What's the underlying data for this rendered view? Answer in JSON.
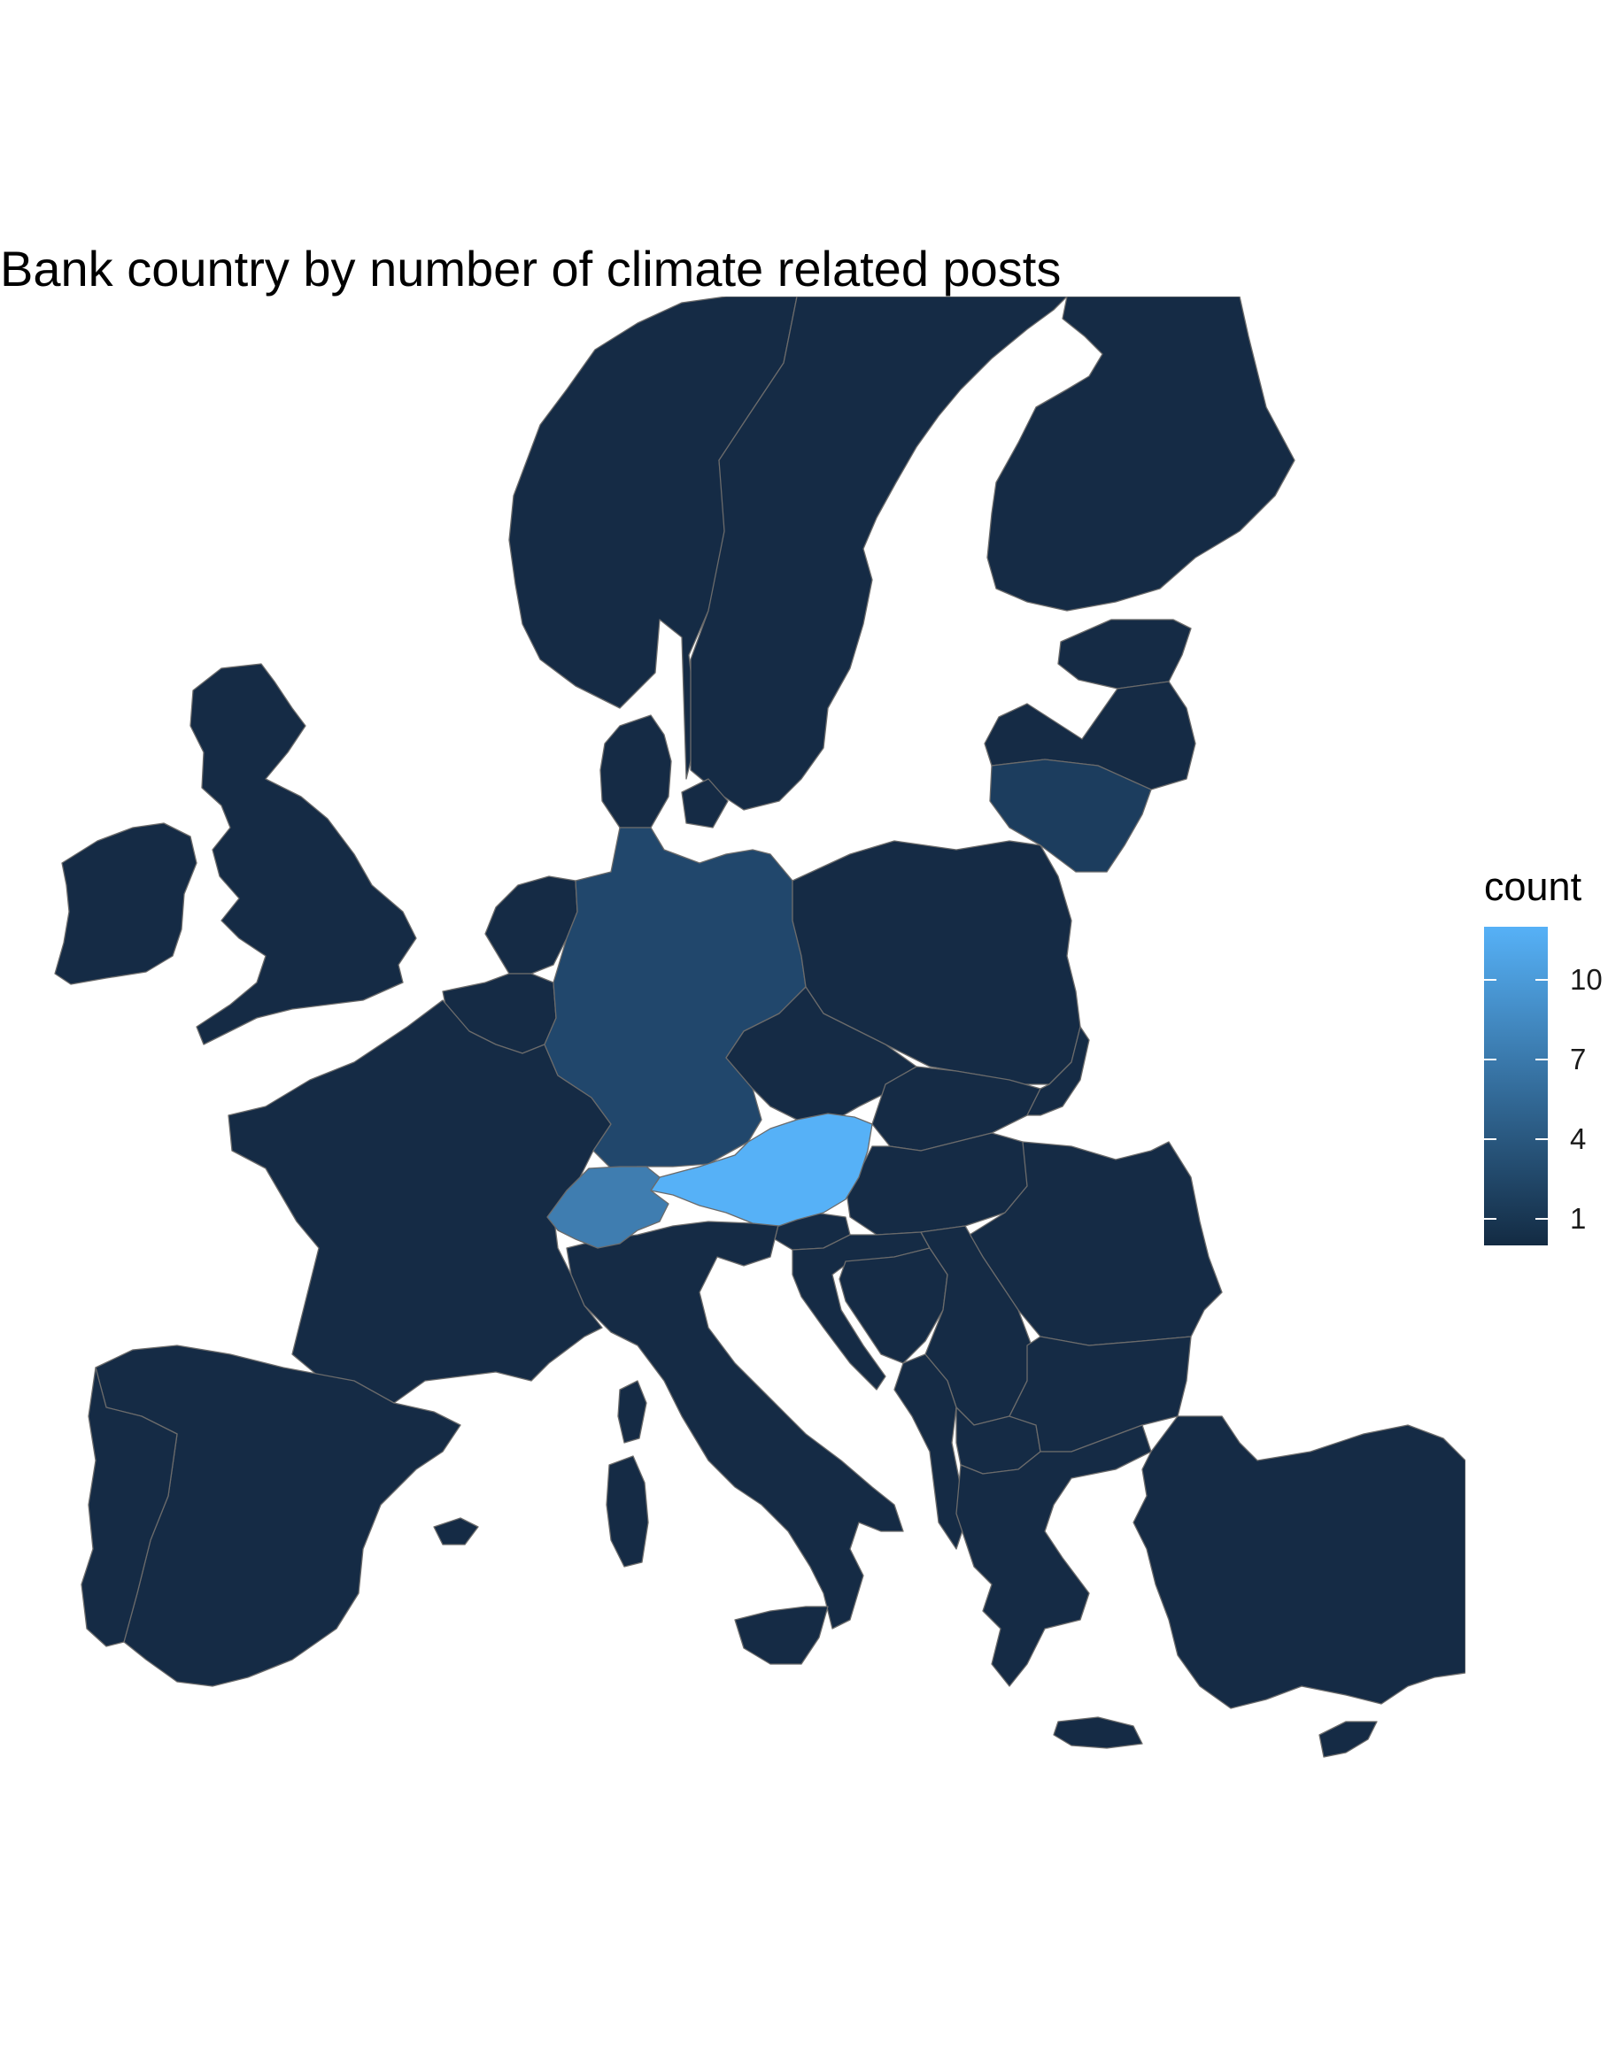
{
  "map": {
    "title": "Bank country by number of climate related posts",
    "fill_variable": "count",
    "base_color": "#152b45",
    "border_color": "#6b6b6b",
    "background": "#ffffff"
  },
  "legend": {
    "title": "count",
    "min": 0,
    "max": 12,
    "low_color": "#132b43",
    "high_color": "#56b1f7",
    "ticks": [
      {
        "value": 10,
        "label": "10"
      },
      {
        "value": 7,
        "label": "7"
      },
      {
        "value": 4,
        "label": "4"
      },
      {
        "value": 1,
        "label": "1"
      }
    ]
  },
  "regions": {
    "austria": {
      "name": "Austria",
      "count": 12,
      "color": "#56b1f7"
    },
    "switzerland": {
      "name": "Switzerland",
      "count": 7,
      "color": "#3f7db0"
    },
    "germany": {
      "name": "Germany",
      "count": 3,
      "color": "#21476c"
    },
    "lithuania": {
      "name": "Lithuania",
      "count": 2,
      "color": "#1c3d5e"
    }
  }
}
